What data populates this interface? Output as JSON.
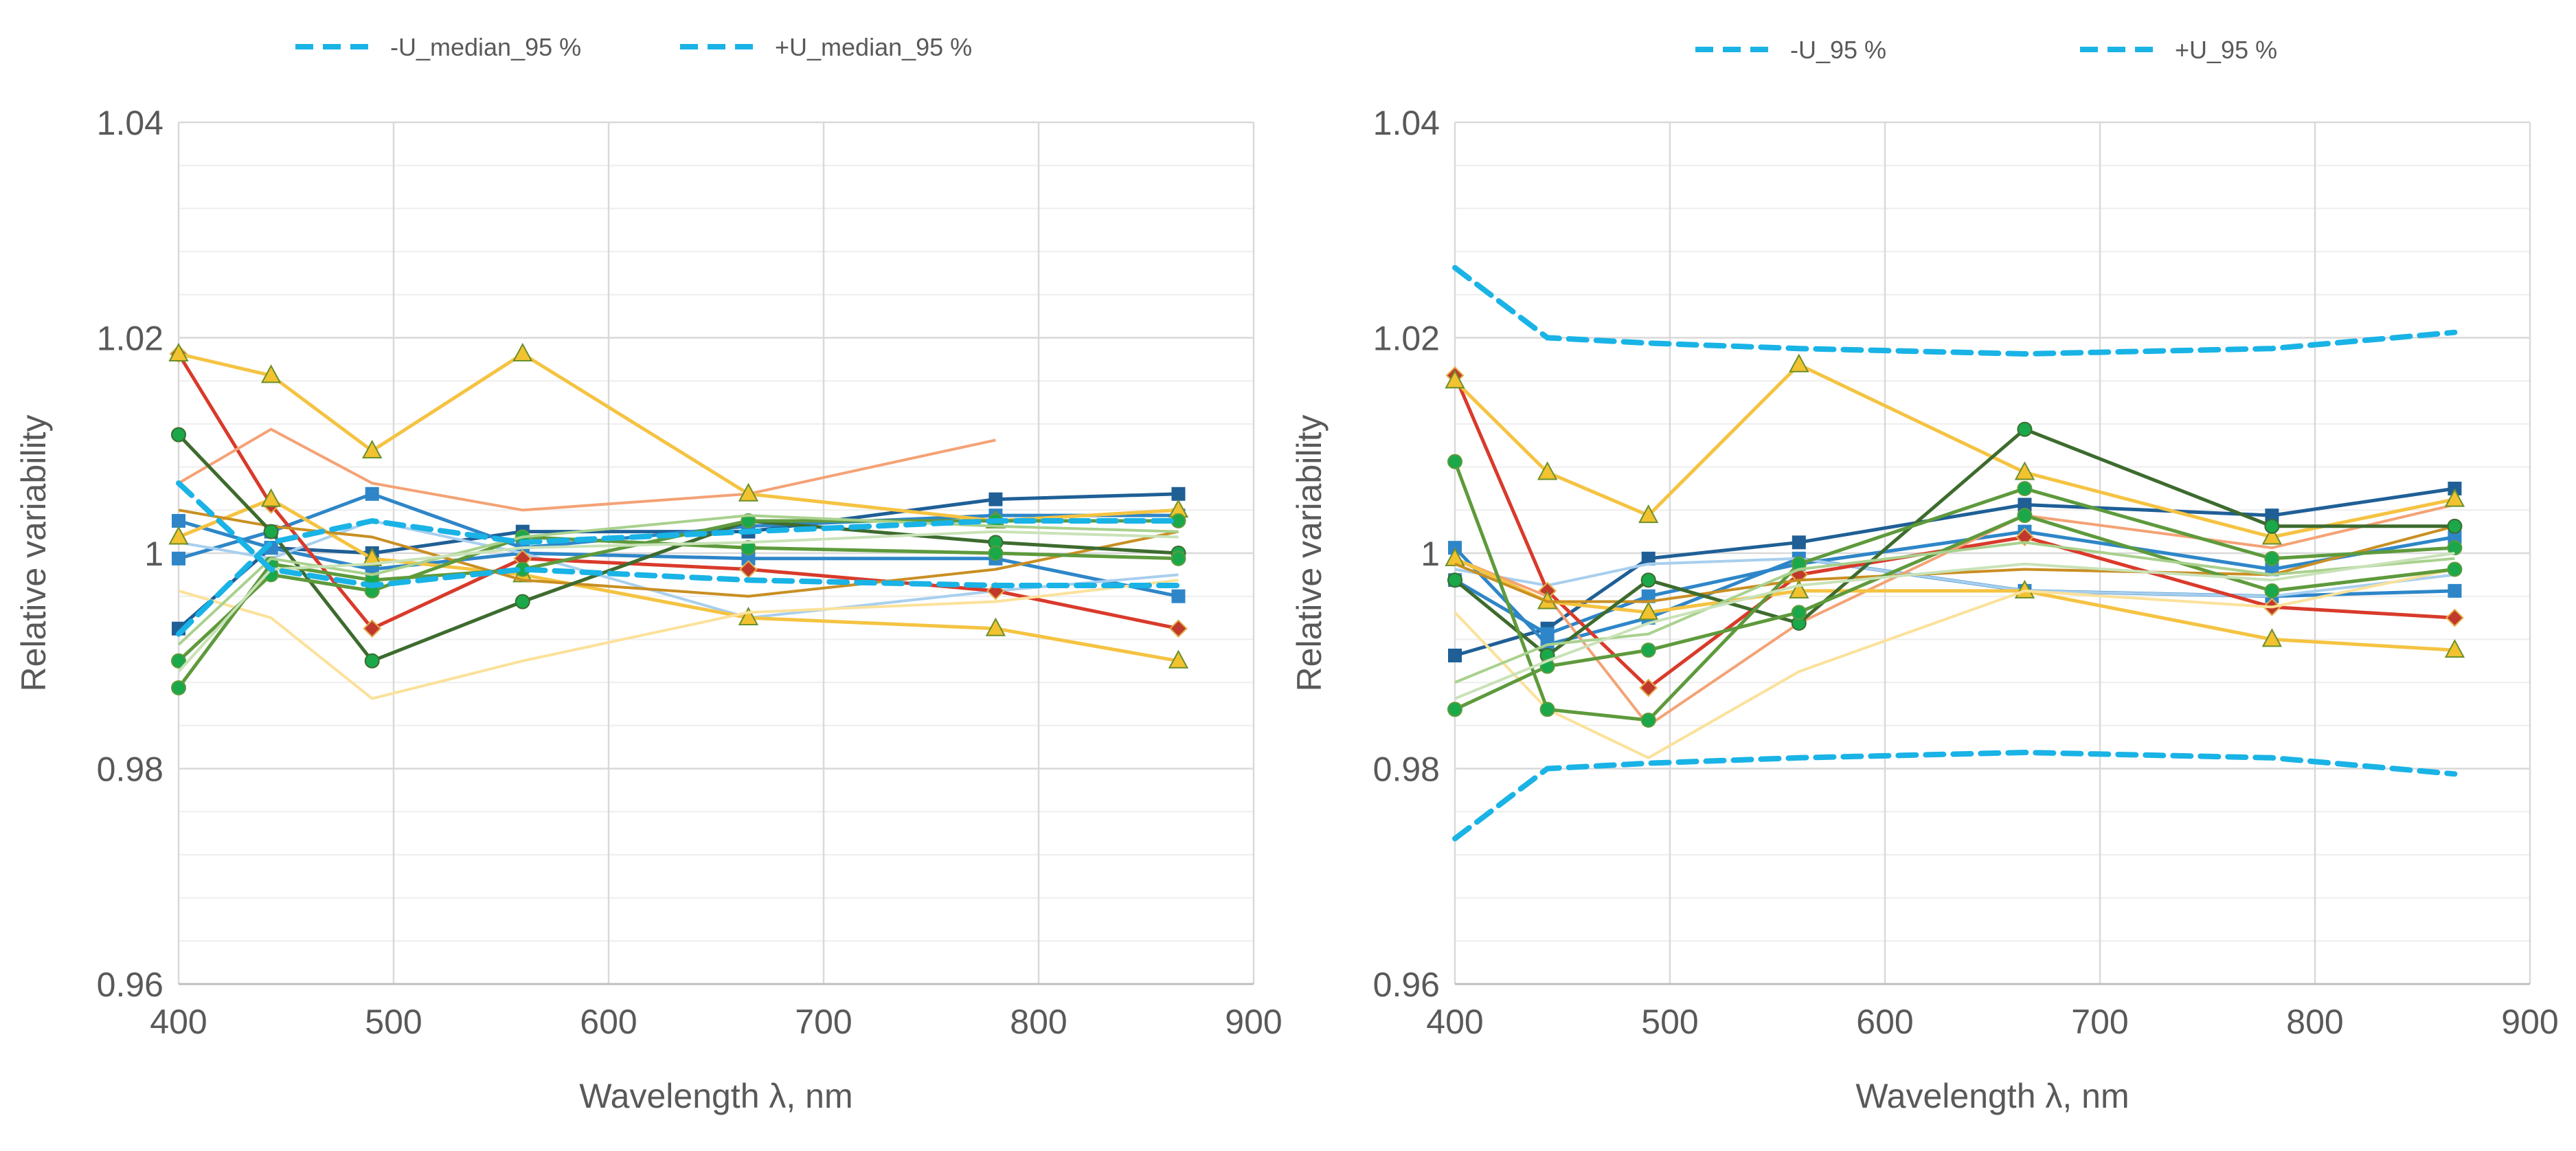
{
  "colors": {
    "band": "#19b3e6",
    "blue_dark": "#1f5f96",
    "blue_mid": "#2e86c8",
    "blue_light": "#a8cfee",
    "red": "#d93a2b",
    "orange": "#f4a275",
    "gold": "#f5c342",
    "gold_light": "#fbe19a",
    "amber": "#c98f22",
    "green_dark": "#3d6b2e",
    "green_mid": "#5e9a3c",
    "green_light": "#a9d18e",
    "green_pale": "#c9e2b8",
    "grid": "#d9d9d9",
    "axis_text": "#595959"
  },
  "chart_data": [
    {
      "type": "line",
      "title": "",
      "xlabel": "Wavelength λ, nm",
      "ylabel": "Relative variability",
      "xlim": [
        400,
        900
      ],
      "ylim": [
        0.96,
        1.04
      ],
      "xticks": [
        "400",
        "500",
        "600",
        "700",
        "800",
        "900"
      ],
      "yticks": [
        "0.96",
        "0.98",
        "1",
        "1.02",
        "1.04"
      ],
      "legend": [
        {
          "name": "-U_median_95 %",
          "values": [
            1.0065,
            0.9985,
            0.997,
            0.9985,
            0.9975,
            0.997,
            0.997
          ]
        },
        {
          "name": "+U_median_95 %",
          "values": [
            0.9925,
            1.001,
            1.003,
            1.001,
            1.002,
            1.003,
            1.003
          ]
        }
      ],
      "x": [
        400,
        443,
        490,
        560,
        665,
        780,
        865
      ],
      "series": [
        {
          "name": "blue dark squares",
          "color": "blue_dark",
          "marker": "square",
          "values": [
            0.993,
            1.0005,
            1.0,
            1.002,
            1.002,
            1.005,
            1.0055
          ]
        },
        {
          "name": "blue mid squares",
          "color": "blue_mid",
          "marker": "square",
          "values": [
            0.9995,
            1.002,
            1.0055,
            1.0005,
            1.0025,
            1.0035,
            1.0035
          ]
        },
        {
          "name": "blue mid thin",
          "color": "blue_mid",
          "marker": "square",
          "values": [
            1.003,
            1.0005,
            0.9985,
            1.0,
            0.9995,
            0.9995,
            0.996
          ]
        },
        {
          "name": "blue light",
          "color": "blue_light",
          "marker": "none",
          "values": [
            1.001,
            0.9995,
            1.003,
            1.0,
            0.994,
            0.9965,
            0.998
          ]
        },
        {
          "name": "red diamonds",
          "color": "red",
          "marker": "diamond",
          "values": [
            1.0185,
            1.0045,
            0.993,
            0.9995,
            0.9985,
            0.9965,
            0.993
          ]
        },
        {
          "name": "orange thin",
          "color": "orange",
          "marker": "none",
          "values": [
            1.0065,
            1.0115,
            1.0065,
            1.004,
            1.0055,
            1.0105,
            null
          ]
        },
        {
          "name": "gold triangles",
          "color": "gold",
          "marker": "triangle",
          "values": [
            1.0185,
            1.0165,
            1.0095,
            1.0185,
            1.0055,
            1.003,
            1.004
          ]
        },
        {
          "name": "gold triangles 2",
          "color": "gold",
          "marker": "triangle",
          "values": [
            1.0015,
            1.005,
            0.9995,
            0.998,
            0.994,
            0.993,
            0.99
          ]
        },
        {
          "name": "gold light",
          "color": "gold_light",
          "marker": "none",
          "values": [
            0.9965,
            0.994,
            0.9865,
            0.99,
            0.9945,
            0.9955,
            0.9975
          ]
        },
        {
          "name": "amber",
          "color": "amber",
          "marker": "none",
          "values": [
            1.004,
            1.0025,
            1.0015,
            0.9975,
            0.996,
            0.9985,
            1.002
          ]
        },
        {
          "name": "green dark circles",
          "color": "green_dark",
          "marker": "circle",
          "values": [
            1.011,
            1.002,
            0.99,
            0.9955,
            1.003,
            1.001,
            1.0
          ]
        },
        {
          "name": "green mid circles",
          "color": "green_mid",
          "marker": "circle",
          "values": [
            0.99,
            0.998,
            0.9965,
            1.0015,
            1.0005,
            1.0,
            0.9995
          ]
        },
        {
          "name": "green circles 3",
          "color": "green_mid",
          "marker": "circle",
          "values": [
            0.9875,
            0.999,
            0.9975,
            0.9985,
            1.003,
            1.003,
            1.003
          ]
        },
        {
          "name": "green light",
          "color": "green_light",
          "marker": "none",
          "values": [
            0.9915,
            0.9995,
            0.998,
            1.0015,
            1.0035,
            1.0025,
            1.002
          ]
        },
        {
          "name": "green pale",
          "color": "green_pale",
          "marker": "none",
          "values": [
            0.989,
            0.9985,
            0.999,
            1.0005,
            1.001,
            1.002,
            1.0015
          ]
        }
      ]
    },
    {
      "type": "line",
      "title": "",
      "xlabel": "Wavelength λ, nm",
      "ylabel": "Relative variability",
      "xlim": [
        400,
        900
      ],
      "ylim": [
        0.96,
        1.04
      ],
      "xticks": [
        "400",
        "500",
        "600",
        "700",
        "800",
        "900"
      ],
      "yticks": [
        "0.96",
        "0.98",
        "1",
        "1.02",
        "1.04"
      ],
      "legend": [
        {
          "name": "-U_95 %",
          "values": [
            1.0265,
            1.02,
            1.0195,
            1.019,
            1.0185,
            1.019,
            1.0205
          ]
        },
        {
          "name": "+U_95 %",
          "values": [
            0.9735,
            0.98,
            0.9805,
            0.981,
            0.9815,
            0.981,
            0.9795
          ]
        }
      ],
      "x": [
        400,
        443,
        490,
        560,
        665,
        780,
        865
      ],
      "series": [
        {
          "name": "blue dark squares",
          "color": "blue_dark",
          "marker": "square",
          "values": [
            0.9905,
            0.993,
            0.9995,
            1.001,
            1.0045,
            1.0035,
            1.006
          ]
        },
        {
          "name": "blue mid squares",
          "color": "blue_mid",
          "marker": "square",
          "values": [
            0.9975,
            0.9925,
            0.996,
            0.999,
            1.002,
            0.9985,
            1.0015
          ]
        },
        {
          "name": "blue mid thin",
          "color": "blue_mid",
          "marker": "square",
          "values": [
            1.0005,
            0.9915,
            0.994,
            0.9995,
            0.9965,
            0.996,
            0.9965
          ]
        },
        {
          "name": "blue light",
          "color": "blue_light",
          "marker": "none",
          "values": [
            0.9985,
            0.997,
            0.999,
            0.9995,
            0.9965,
            0.996,
            0.998
          ]
        },
        {
          "name": "red diamonds",
          "color": "red",
          "marker": "diamond",
          "values": [
            1.0165,
            0.9965,
            0.9875,
            0.998,
            1.0015,
            0.995,
            0.994
          ]
        },
        {
          "name": "orange thin",
          "color": "orange",
          "marker": "none",
          "values": [
            0.9995,
            0.996,
            0.984,
            0.9935,
            1.0035,
            1.0005,
            1.0045
          ]
        },
        {
          "name": "gold triangles",
          "color": "gold",
          "marker": "triangle",
          "values": [
            1.016,
            1.0075,
            1.0035,
            1.0175,
            1.0075,
            1.0015,
            1.005
          ]
        },
        {
          "name": "gold triangles 2",
          "color": "gold",
          "marker": "triangle",
          "values": [
            0.9995,
            0.9955,
            0.9945,
            0.9965,
            0.9965,
            0.992,
            0.991
          ]
        },
        {
          "name": "gold light",
          "color": "gold_light",
          "marker": "none",
          "values": [
            0.9945,
            0.9855,
            0.981,
            0.989,
            0.9965,
            0.995,
            0.9985
          ]
        },
        {
          "name": "amber",
          "color": "amber",
          "marker": "none",
          "values": [
            0.999,
            0.9955,
            0.9955,
            0.9975,
            0.9985,
            0.998,
            1.0025
          ]
        },
        {
          "name": "green dark circles",
          "color": "green_dark",
          "marker": "circle",
          "values": [
            0.9975,
            0.9905,
            0.9975,
            0.9935,
            1.0115,
            1.0025,
            1.0025
          ]
        },
        {
          "name": "green mid circles",
          "color": "green_mid",
          "marker": "circle",
          "values": [
            1.0085,
            0.9855,
            0.9845,
            0.999,
            1.006,
            0.9995,
            1.0005
          ]
        },
        {
          "name": "green circles 3",
          "color": "green_mid",
          "marker": "circle",
          "values": [
            0.9855,
            0.9895,
            0.991,
            0.9945,
            1.0035,
            0.9965,
            0.9985
          ]
        },
        {
          "name": "green light",
          "color": "green_light",
          "marker": "none",
          "values": [
            0.988,
            0.9915,
            0.9925,
            0.9985,
            1.001,
            0.998,
            0.9995
          ]
        },
        {
          "name": "green pale",
          "color": "green_pale",
          "marker": "none",
          "values": [
            0.9865,
            0.99,
            0.9935,
            0.997,
            0.999,
            0.9975,
            1.0
          ]
        }
      ]
    }
  ]
}
